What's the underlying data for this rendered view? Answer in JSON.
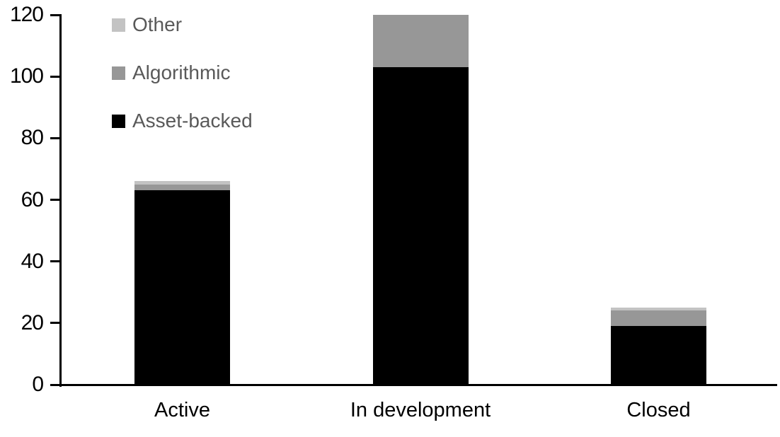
{
  "chart_data": {
    "type": "bar",
    "stacked": true,
    "title": "",
    "xlabel": "",
    "ylabel": "",
    "categories": [
      "Active",
      "In development",
      "Closed"
    ],
    "series": [
      {
        "name": "Asset-backed",
        "color": "#000000",
        "values": [
          63,
          103,
          19
        ]
      },
      {
        "name": "Algorithmic",
        "color": "#979797",
        "values": [
          2,
          17,
          5
        ]
      },
      {
        "name": "Other",
        "color": "#c3c3c3",
        "values": [
          1,
          0,
          1
        ]
      }
    ],
    "totals": [
      66,
      120,
      25
    ],
    "ylim": [
      0,
      120
    ],
    "yticks": [
      0,
      20,
      40,
      60,
      80,
      100,
      120
    ],
    "ytick_labels": [
      "0",
      "20",
      "40",
      "60",
      "80",
      "100",
      "120"
    ],
    "grid": false,
    "legend": {
      "position": "top-left",
      "entries": [
        "Other",
        "Algorithmic",
        "Asset-backed"
      ],
      "text_color": "#595959"
    },
    "axis_color": "#000000",
    "background_color": "#ffffff"
  }
}
